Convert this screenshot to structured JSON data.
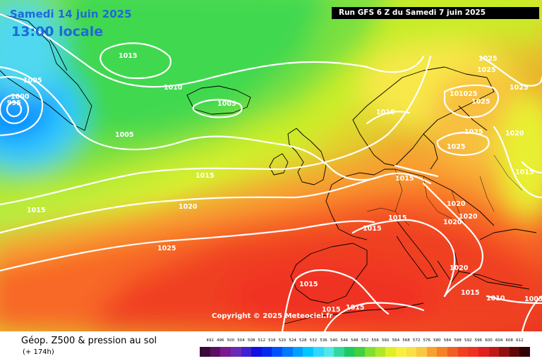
{
  "header": {
    "date": "Samedi 14 juin 2025",
    "time": "13:00 locale",
    "run": "Run GFS 6 Z du Samedi 7 juin 2025"
  },
  "copyright": "Copyright © 2025 Meteociel.fr",
  "footer": {
    "title": "Géop. Z500 & pression au sol",
    "subtitle": "(+ 174h)"
  },
  "legend": {
    "labels": [
      "492",
      "496",
      "500",
      "504",
      "508",
      "512",
      "516",
      "520",
      "524",
      "528",
      "532",
      "536",
      "540",
      "544",
      "548",
      "552",
      "556",
      "560",
      "564",
      "568",
      "572",
      "576",
      "580",
      "584",
      "588",
      "592",
      "596",
      "600",
      "604",
      "608",
      "612"
    ],
    "colors": [
      "#3a0a3a",
      "#5a1060",
      "#7a1890",
      "#6a2ab8",
      "#4020d0",
      "#1010e0",
      "#0028f0",
      "#0050ff",
      "#0078ff",
      "#00a0ff",
      "#00c8ff",
      "#30d8ff",
      "#50e8e8",
      "#30d8a0",
      "#20c860",
      "#40d040",
      "#80e030",
      "#b0e828",
      "#e0f020",
      "#f8f040",
      "#f8e048",
      "#f8c840",
      "#f8a030",
      "#f88028",
      "#f06020",
      "#f04020",
      "#f03020",
      "#e02020",
      "#c01818",
      "#901010",
      "#600808",
      "#300404"
    ]
  },
  "isobar_labels": [
    {
      "text": "1015"
    },
    {
      "text": "1005"
    },
    {
      "text": "1000"
    },
    {
      "text": "995"
    },
    {
      "text": "1010"
    },
    {
      "text": "1005"
    },
    {
      "text": "1005"
    },
    {
      "text": "1015"
    },
    {
      "text": "1015"
    },
    {
      "text": "1020"
    },
    {
      "text": "1025"
    },
    {
      "text": "1010"
    },
    {
      "text": "1015"
    },
    {
      "text": "1015"
    },
    {
      "text": "1015"
    },
    {
      "text": "1025"
    },
    {
      "text": "1025"
    },
    {
      "text": "1025"
    },
    {
      "text": "1025"
    },
    {
      "text": "1025"
    },
    {
      "text": "1025"
    },
    {
      "text": "1020"
    },
    {
      "text": "1015"
    },
    {
      "text": "1020"
    },
    {
      "text": "1020"
    },
    {
      "text": "1020"
    },
    {
      "text": "1020"
    },
    {
      "text": "1015"
    },
    {
      "text": "1010"
    },
    {
      "text": "1005"
    },
    {
      "text": "1015"
    },
    {
      "text": "1015"
    },
    {
      "text": "1015"
    },
    {
      "text": "1025"
    },
    {
      "text": "10"
    }
  ]
}
